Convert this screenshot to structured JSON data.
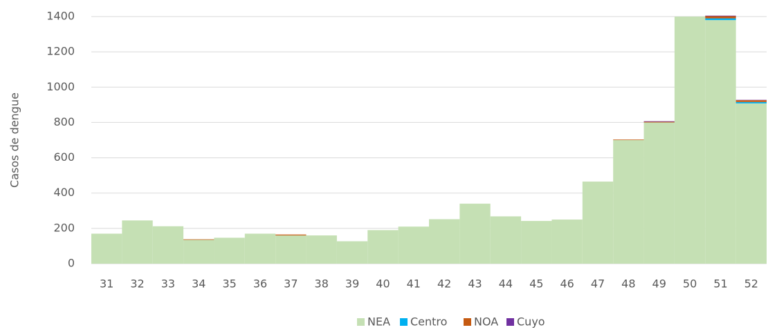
{
  "chart_data": {
    "type": "stacked_bar",
    "y_label": "Casos de dengue",
    "categories": [
      "31",
      "32",
      "33",
      "34",
      "35",
      "36",
      "37",
      "38",
      "39",
      "40",
      "41",
      "42",
      "43",
      "44",
      "45",
      "46",
      "47",
      "48",
      "49",
      "50",
      "51",
      "52"
    ],
    "series": [
      {
        "name": "NEA",
        "color": "#c5e0b4",
        "values": [
          170,
          245,
          212,
          135,
          147,
          170,
          160,
          160,
          127,
          190,
          210,
          252,
          340,
          268,
          242,
          250,
          465,
          700,
          800,
          1400,
          1380,
          908
        ]
      },
      {
        "name": "Centro",
        "color": "#00b0f0",
        "values": [
          0,
          0,
          0,
          0,
          0,
          0,
          0,
          0,
          0,
          0,
          0,
          0,
          0,
          0,
          0,
          0,
          0,
          0,
          0,
          0,
          10,
          8
        ]
      },
      {
        "name": "NOA",
        "color": "#c55a11",
        "values": [
          0,
          0,
          0,
          3,
          0,
          0,
          5,
          0,
          0,
          0,
          0,
          0,
          0,
          0,
          0,
          0,
          0,
          3,
          4,
          0,
          12,
          10
        ]
      },
      {
        "name": "Cuyo",
        "color": "#7030a0",
        "values": [
          0,
          0,
          0,
          0,
          0,
          0,
          0,
          0,
          0,
          0,
          0,
          0,
          0,
          0,
          0,
          0,
          0,
          0,
          3,
          0,
          3,
          2
        ]
      }
    ],
    "ylim": [
      0,
      1400
    ],
    "yticks": [
      0,
      200,
      400,
      600,
      800,
      1000,
      1200,
      1400
    ],
    "grid": true
  }
}
